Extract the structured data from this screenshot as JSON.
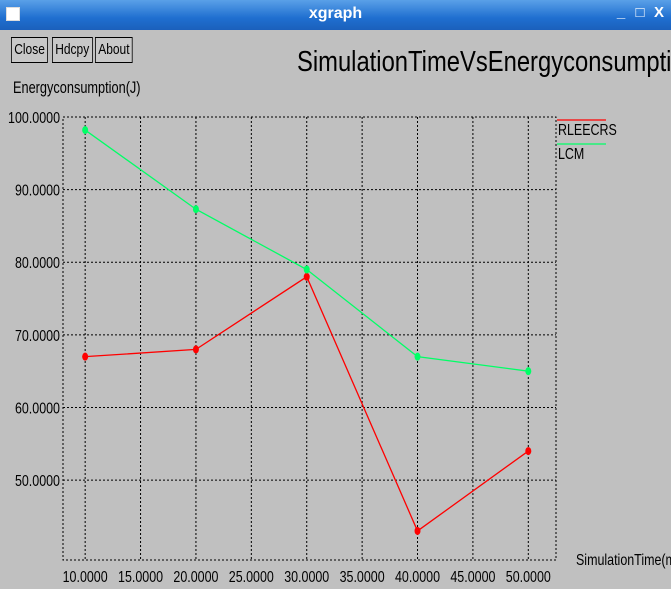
{
  "window": {
    "title": "xgraph",
    "controls": [
      "_",
      "□",
      "X"
    ]
  },
  "toolbar": {
    "close_label": "Close",
    "hdcpy_label": "Hdcpy",
    "about_label": "About"
  },
  "chart_data": {
    "type": "line",
    "title": "SimulationTimeVsEnergyconsumption",
    "ylabel": "Energyconsumption(J)",
    "xlabel": "SimulationTime(m",
    "x": [
      10,
      20,
      30,
      40,
      50
    ],
    "x_ticks": [
      "10.0000",
      "15.0000",
      "20.0000",
      "25.0000",
      "30.0000",
      "35.0000",
      "40.0000",
      "45.0000",
      "50.0000"
    ],
    "y_ticks": [
      "100.0000",
      "90.0000",
      "80.0000",
      "70.0000",
      "60.0000",
      "50.0000"
    ],
    "xlim": [
      8,
      52.5
    ],
    "ylim": [
      39,
      100
    ],
    "grid": true,
    "legend_placement": "right",
    "series": [
      {
        "name": "RLEECRS",
        "color": "#ff0000",
        "values": [
          67,
          68,
          78,
          43,
          54
        ]
      },
      {
        "name": "LCM",
        "color": "#00ff66",
        "values": [
          98.2,
          87.3,
          79,
          67,
          65
        ]
      }
    ]
  }
}
